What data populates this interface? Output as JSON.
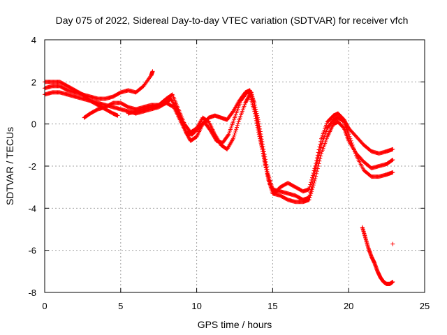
{
  "chart_data": {
    "type": "scatter",
    "title": "Day 075 of 2022, Sidereal Day-to-day VTEC variation (SDTVAR) for receiver vfch",
    "xlabel": "GPS time / hours",
    "ylabel": "SDTVAR / TECUs",
    "xlim": [
      0,
      25
    ],
    "ylim": [
      -8,
      4
    ],
    "xticks": [
      0,
      5,
      10,
      15,
      20,
      25
    ],
    "yticks": [
      -8,
      -6,
      -4,
      -2,
      0,
      2,
      4
    ],
    "xtick_labels": [
      "0",
      "5",
      "10",
      "15",
      "20",
      "25"
    ],
    "ytick_labels": [
      "-8",
      "-6",
      "-4",
      "-2",
      "0",
      "2",
      "4"
    ],
    "grid": true,
    "marker": "+",
    "color": "#ff0000",
    "series": [
      {
        "name": "track-1",
        "points": [
          [
            0,
            1.4
          ],
          [
            0.5,
            1.5
          ],
          [
            1,
            1.5
          ],
          [
            1.5,
            1.4
          ],
          [
            2,
            1.3
          ],
          [
            2.5,
            1.2
          ],
          [
            3,
            1.1
          ],
          [
            3.5,
            1.0
          ],
          [
            4,
            0.9
          ],
          [
            4.5,
            0.8
          ],
          [
            5,
            0.7
          ],
          [
            5.5,
            0.6
          ],
          [
            6,
            0.5
          ],
          [
            6.5,
            0.6
          ],
          [
            7,
            0.7
          ],
          [
            7.5,
            0.8
          ],
          [
            8,
            1.0
          ],
          [
            8.3,
            1.2
          ],
          [
            8.7,
            0.7
          ],
          [
            9,
            0.2
          ],
          [
            9.3,
            -0.4
          ],
          [
            9.6,
            -0.8
          ],
          [
            10,
            -0.6
          ],
          [
            10.4,
            0.0
          ],
          [
            10.8,
            0.3
          ],
          [
            11.2,
            0.4
          ],
          [
            11.6,
            0.3
          ],
          [
            12,
            0.2
          ],
          [
            12.4,
            0.6
          ],
          [
            12.8,
            1.1
          ],
          [
            13.2,
            1.5
          ],
          [
            13.5,
            1.6
          ],
          [
            13.8,
            1.0
          ],
          [
            14.1,
            0.0
          ],
          [
            14.4,
            -1.2
          ],
          [
            14.7,
            -2.4
          ],
          [
            15,
            -3.1
          ],
          [
            15.5,
            -3.2
          ],
          [
            16,
            -3.3
          ],
          [
            16.5,
            -3.4
          ],
          [
            17,
            -3.6
          ],
          [
            17.4,
            -3.5
          ],
          [
            17.8,
            -2.2
          ],
          [
            18.2,
            -1.0
          ],
          [
            18.6,
            -0.2
          ],
          [
            19,
            0.2
          ],
          [
            19.3,
            0.3
          ],
          [
            19.7,
            0.1
          ],
          [
            20,
            -0.5
          ],
          [
            20.5,
            -1.5
          ],
          [
            21,
            -2.2
          ],
          [
            21.5,
            -2.5
          ],
          [
            22,
            -2.5
          ],
          [
            22.5,
            -2.4
          ],
          [
            22.9,
            -2.3
          ]
        ]
      },
      {
        "name": "track-2",
        "points": [
          [
            0,
            1.7
          ],
          [
            0.5,
            1.8
          ],
          [
            1,
            1.8
          ],
          [
            1.5,
            1.6
          ],
          [
            2,
            1.5
          ],
          [
            2.5,
            1.4
          ],
          [
            3,
            1.3
          ],
          [
            3.5,
            1.2
          ],
          [
            4,
            1.2
          ],
          [
            4.5,
            1.3
          ],
          [
            5,
            1.5
          ],
          [
            5.5,
            1.6
          ],
          [
            6,
            1.5
          ],
          [
            6.5,
            1.8
          ],
          [
            7,
            2.3
          ],
          [
            7.1,
            2.5
          ]
        ]
      },
      {
        "name": "track-3",
        "points": [
          [
            0,
            2.0
          ],
          [
            0.5,
            2.0
          ],
          [
            1,
            2.0
          ],
          [
            1.5,
            1.8
          ],
          [
            2,
            1.6
          ],
          [
            2.5,
            1.4
          ],
          [
            3,
            1.1
          ],
          [
            3.5,
            0.9
          ],
          [
            4,
            0.7
          ],
          [
            4.5,
            0.5
          ],
          [
            4.8,
            0.4
          ]
        ]
      },
      {
        "name": "track-4",
        "points": [
          [
            2.6,
            0.3
          ],
          [
            3,
            0.5
          ],
          [
            3.5,
            0.7
          ],
          [
            4,
            0.8
          ],
          [
            4.5,
            1.0
          ],
          [
            5,
            1.0
          ],
          [
            5.5,
            0.8
          ],
          [
            6,
            0.7
          ],
          [
            6.5,
            0.8
          ],
          [
            7,
            0.9
          ],
          [
            7.5,
            0.9
          ],
          [
            8,
            1.2
          ],
          [
            8.4,
            1.4
          ],
          [
            8.8,
            0.7
          ],
          [
            9.2,
            0.0
          ],
          [
            9.6,
            -0.4
          ],
          [
            10,
            -0.2
          ],
          [
            10.4,
            0.3
          ],
          [
            10.8,
            0.1
          ],
          [
            11.2,
            -0.5
          ],
          [
            11.6,
            -1.0
          ],
          [
            12,
            -1.2
          ],
          [
            12.4,
            -0.7
          ],
          [
            12.8,
            0.2
          ],
          [
            13.2,
            1.0
          ],
          [
            13.5,
            1.4
          ],
          [
            13.8,
            0.6
          ],
          [
            14.1,
            -0.5
          ],
          [
            14.4,
            -1.5
          ],
          [
            14.7,
            -2.6
          ],
          [
            15,
            -3.3
          ],
          [
            15.5,
            -3.4
          ],
          [
            16,
            -3.6
          ],
          [
            16.5,
            -3.7
          ],
          [
            17,
            -3.7
          ],
          [
            17.4,
            -3.6
          ],
          [
            17.8,
            -2.6
          ],
          [
            18.2,
            -1.4
          ],
          [
            18.6,
            -0.6
          ],
          [
            19,
            0.0
          ],
          [
            19.3,
            0.1
          ],
          [
            19.7,
            -0.2
          ],
          [
            20,
            -0.8
          ],
          [
            20.5,
            -1.4
          ],
          [
            21,
            -1.8
          ],
          [
            21.5,
            -2.1
          ],
          [
            22,
            -2.0
          ],
          [
            22.5,
            -1.9
          ],
          [
            22.9,
            -1.7
          ]
        ]
      },
      {
        "name": "track-5",
        "points": [
          [
            5.5,
            0.5
          ],
          [
            6,
            0.6
          ],
          [
            6.5,
            0.7
          ],
          [
            7,
            0.8
          ],
          [
            7.5,
            0.9
          ],
          [
            8,
            1.0
          ],
          [
            8.5,
            0.8
          ],
          [
            8.9,
            0.2
          ],
          [
            9.3,
            -0.4
          ],
          [
            9.7,
            -0.5
          ],
          [
            10.1,
            -0.2
          ],
          [
            10.5,
            0.1
          ],
          [
            10.9,
            -0.3
          ],
          [
            11.3,
            -0.8
          ],
          [
            11.7,
            -0.9
          ],
          [
            12.1,
            -0.5
          ],
          [
            12.5,
            0.3
          ],
          [
            12.9,
            1.1
          ],
          [
            13.3,
            1.5
          ],
          [
            13.6,
            1.5
          ],
          [
            13.9,
            0.5
          ],
          [
            14.2,
            -0.7
          ],
          [
            14.5,
            -1.9
          ],
          [
            14.8,
            -2.8
          ],
          [
            15.1,
            -3.3
          ],
          [
            15.5,
            -3.0
          ],
          [
            16,
            -2.8
          ],
          [
            16.5,
            -3.0
          ],
          [
            17,
            -3.2
          ],
          [
            17.4,
            -3.1
          ],
          [
            17.8,
            -2.0
          ],
          [
            18.2,
            -0.7
          ],
          [
            18.6,
            0.1
          ],
          [
            19,
            0.4
          ],
          [
            19.3,
            0.5
          ],
          [
            19.7,
            0.2
          ],
          [
            20,
            -0.2
          ],
          [
            20.5,
            -0.6
          ],
          [
            21,
            -1.0
          ],
          [
            21.5,
            -1.3
          ],
          [
            22,
            -1.4
          ],
          [
            22.5,
            -1.3
          ],
          [
            22.9,
            -1.2
          ]
        ]
      },
      {
        "name": "track-6",
        "points": [
          [
            20.9,
            -4.9
          ],
          [
            21.1,
            -5.4
          ],
          [
            21.3,
            -5.9
          ],
          [
            21.5,
            -6.3
          ],
          [
            21.7,
            -6.6
          ],
          [
            21.9,
            -7.0
          ],
          [
            22.1,
            -7.3
          ],
          [
            22.3,
            -7.5
          ],
          [
            22.5,
            -7.6
          ],
          [
            22.7,
            -7.6
          ],
          [
            22.9,
            -7.5
          ]
        ]
      },
      {
        "name": "outlier",
        "points": [
          [
            22.9,
            -5.7
          ]
        ]
      }
    ]
  }
}
